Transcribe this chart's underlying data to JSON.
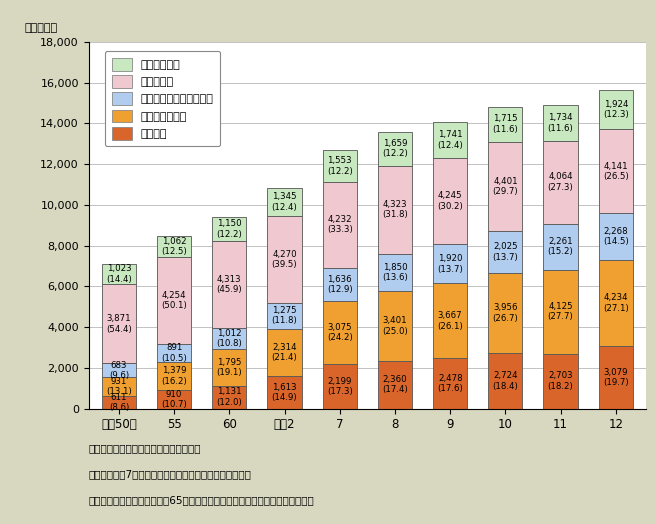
{
  "years": [
    "昭和50年",
    "55",
    "60",
    "平成2",
    "7",
    "8",
    "9",
    "10",
    "11",
    "12"
  ],
  "tandoku": [
    611,
    910,
    1131,
    1613,
    2199,
    2360,
    2478,
    2724,
    2703,
    3079
  ],
  "fufu": [
    931,
    1379,
    1795,
    2314,
    3075,
    3401,
    3667,
    3956,
    4125,
    4234
  ],
  "oyako": [
    683,
    891,
    1012,
    1275,
    1636,
    1850,
    1920,
    2025,
    2261,
    2268
  ],
  "sansedai": [
    3871,
    4254,
    4313,
    4270,
    4232,
    4323,
    4245,
    4401,
    4064,
    4141
  ],
  "sonota": [
    1023,
    1062,
    1150,
    1345,
    1553,
    1659,
    1741,
    1715,
    1734,
    1924
  ],
  "tandoku_pct": [
    "(8.6)",
    "(10.7)",
    "(12.0)",
    "(14.9)",
    "(17.3)",
    "(17.4)",
    "(17.6)",
    "(18.4)",
    "(18.2)",
    "(19.7)"
  ],
  "fufu_pct": [
    "(13.1)",
    "(16.2)",
    "(19.1)",
    "(21.4)",
    "(24.2)",
    "(25.0)",
    "(26.1)",
    "(26.7)",
    "(27.7)",
    "(27.1)"
  ],
  "oyako_pct": [
    "(9.6)",
    "(10.5)",
    "(10.8)",
    "(11.8)",
    "(12.9)",
    "(13.6)",
    "(13.7)",
    "(13.7)",
    "(15.2)",
    "(14.5)"
  ],
  "sansedai_pct": [
    "(54.4)",
    "(50.1)",
    "(45.9)",
    "(39.5)",
    "(33.3)",
    "(31.8)",
    "(30.2)",
    "(29.7)",
    "(27.3)",
    "(26.5)"
  ],
  "sonota_pct": [
    "(14.4)",
    "(12.5)",
    "(12.2)",
    "(12.4)",
    "(12.2)",
    "(12.2)",
    "(12.4)",
    "(11.6)",
    "(11.6)",
    "(12.3)"
  ],
  "color_tandoku": "#d9652a",
  "color_fufu": "#f0a030",
  "color_oyako": "#b0ccee",
  "color_sansedai": "#f0c8d0",
  "color_sonota": "#c8e8c0",
  "bg_color": "#d8d8c0",
  "plot_bg": "#ffffff",
  "ylabel": "（千世帯）",
  "ylim": [
    0,
    18000
  ],
  "yticks": [
    0,
    2000,
    4000,
    6000,
    8000,
    10000,
    12000,
    14000,
    16000,
    18000
  ],
  "legend_labels": [
    "その他の世帯",
    "三世代世帯",
    "親と未婚の子のみの世帯",
    "夫婦のみの世帯",
    "単独世帯"
  ],
  "note1": "資料：厚生労働省「国民生活基礎調査」",
  "note2": "（注１）平成7年の数値は、兵庫県を除いたものである。",
  "note3": "（注２）（　）内の数字は、65歳以上の者のいる世帯総数に占める割合（％）"
}
